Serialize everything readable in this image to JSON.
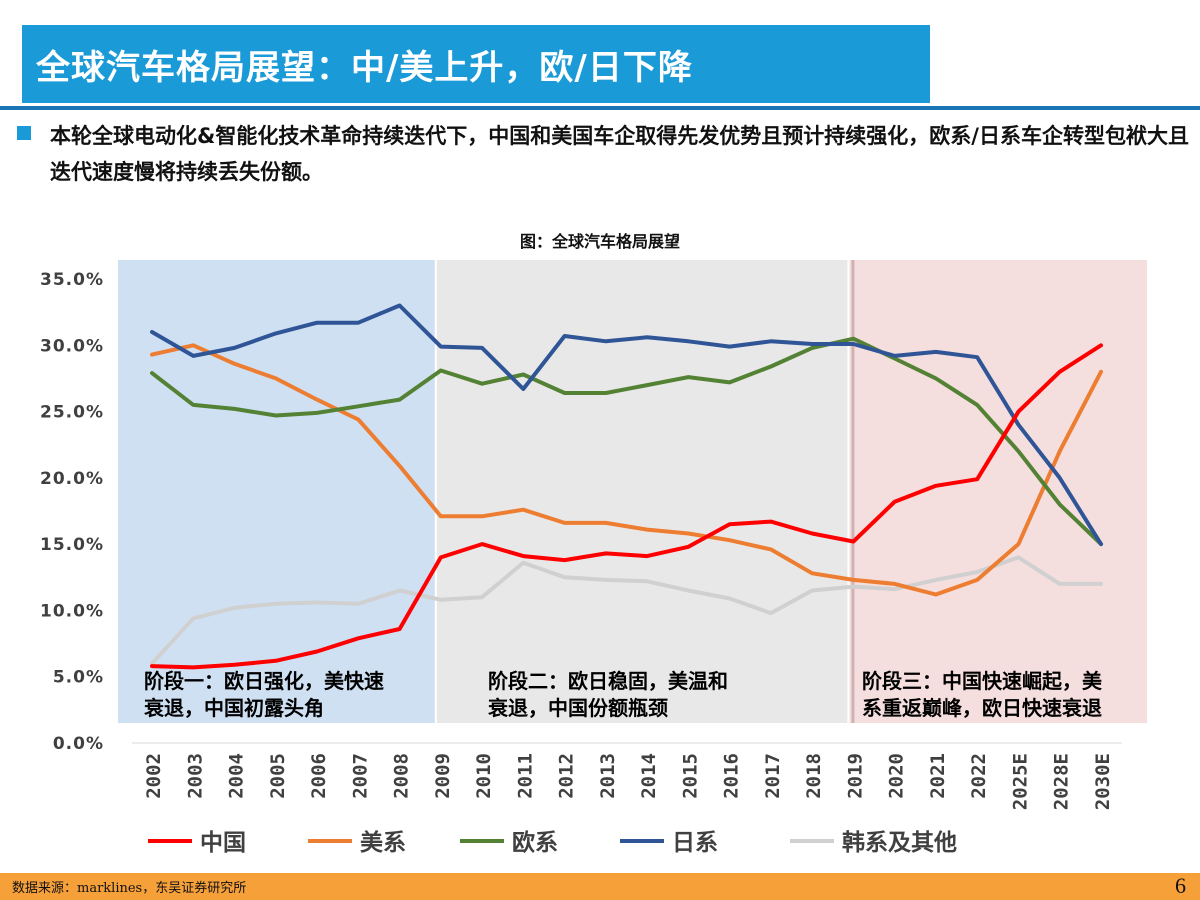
{
  "header": {
    "title": "全球汽车格局展望：中/美上升，欧/日下降"
  },
  "bullet": {
    "text": "本轮全球电动化&智能化技术革命持续迭代下，中国和美国车企取得先发优势且预计持续强化，欧系/日系车企转型包袱大且迭代速度慢将持续丢失份额。"
  },
  "footer": {
    "source": "数据来源：marklines，东吴证券研究所",
    "page": "6"
  },
  "chart_data": {
    "type": "line",
    "title": "图：全球汽车格局展望",
    "categories": [
      "2002",
      "2003",
      "2004",
      "2005",
      "2006",
      "2007",
      "2008",
      "2009",
      "2010",
      "2011",
      "2012",
      "2013",
      "2014",
      "2015",
      "2016",
      "2017",
      "2018",
      "2019",
      "2020",
      "2021",
      "2022",
      "2025E",
      "2028E",
      "2030E"
    ],
    "ylim": [
      0,
      35
    ],
    "yticks": [
      "0.0%",
      "5.0%",
      "10.0%",
      "15.0%",
      "20.0%",
      "25.0%",
      "30.0%",
      "35.0%"
    ],
    "grid": false,
    "legend_position": "bottom",
    "series": [
      {
        "name": "中国",
        "color": "#ff0000",
        "values": [
          5.8,
          5.7,
          5.9,
          6.2,
          6.9,
          7.9,
          8.6,
          14.0,
          15.0,
          14.1,
          13.8,
          14.3,
          14.1,
          14.8,
          16.5,
          16.7,
          15.8,
          15.2,
          18.2,
          19.4,
          19.9,
          25.0,
          28.0,
          30.0
        ]
      },
      {
        "name": "美系",
        "color": "#ed7d31",
        "values": [
          29.3,
          30.0,
          28.6,
          27.5,
          25.9,
          24.4,
          20.9,
          17.1,
          17.1,
          17.6,
          16.6,
          16.6,
          16.1,
          15.8,
          15.3,
          14.6,
          12.8,
          12.3,
          12.0,
          11.2,
          12.3,
          15.0,
          22.0,
          28.0
        ]
      },
      {
        "name": "欧系",
        "color": "#548235",
        "values": [
          27.9,
          25.5,
          25.2,
          24.7,
          24.9,
          25.4,
          25.9,
          28.1,
          27.1,
          27.8,
          26.4,
          26.4,
          27.0,
          27.6,
          27.2,
          28.4,
          29.8,
          30.5,
          29.0,
          27.5,
          25.5,
          22.0,
          18.0,
          15.0
        ]
      },
      {
        "name": "日系",
        "color": "#2f5597",
        "values": [
          31.0,
          29.2,
          29.8,
          30.9,
          31.7,
          31.7,
          33.0,
          29.9,
          29.8,
          26.7,
          30.7,
          30.3,
          30.6,
          30.3,
          29.9,
          30.3,
          30.1,
          30.1,
          29.2,
          29.5,
          29.1,
          24.0,
          20.0,
          15.0
        ]
      },
      {
        "name": "韩系及其他",
        "color": "#d0d0d0",
        "values": [
          6.0,
          9.4,
          10.2,
          10.5,
          10.6,
          10.5,
          11.5,
          10.8,
          11.0,
          13.6,
          12.5,
          12.3,
          12.2,
          11.5,
          10.9,
          9.8,
          11.5,
          11.8,
          11.6,
          12.3,
          12.9,
          14.0,
          12.0,
          12.0
        ]
      }
    ],
    "phases": [
      {
        "from": "2002",
        "to": "2009",
        "color": "#cfe0f3",
        "label_line1": "阶段一：欧日强化，美快速",
        "label_line2": "衰退，中国初露头角"
      },
      {
        "from": "2009",
        "to": "2019",
        "color": "#e8e8e8",
        "label_line1": "阶段二：欧日稳固，美温和",
        "label_line2": "衰退，中国份额瓶颈"
      },
      {
        "from": "2019",
        "to": "2030E",
        "color": "#f5dede",
        "label_line1": "阶段三：中国快速崛起，美",
        "label_line2": "系重返巅峰，欧日快速衰退"
      }
    ]
  }
}
